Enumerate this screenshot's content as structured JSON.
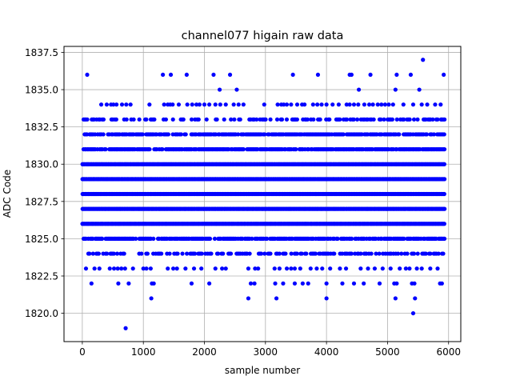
{
  "chart_data": {
    "type": "scatter",
    "title": "channel077 higain raw data",
    "xlabel": "sample number",
    "ylabel": "ADC Code",
    "xlim": [
      -300,
      6200
    ],
    "ylim": [
      1818.1,
      1837.9
    ],
    "x_ticks": [
      0,
      1000,
      2000,
      3000,
      4000,
      5000,
      6000
    ],
    "x_tick_labels": [
      "0",
      "1000",
      "2000",
      "3000",
      "4000",
      "5000",
      "6000"
    ],
    "y_ticks": [
      1820.0,
      1822.5,
      1825.0,
      1827.5,
      1830.0,
      1832.5,
      1835.0,
      1837.5
    ],
    "y_tick_labels": [
      "1820.0",
      "1822.5",
      "1825.0",
      "1827.5",
      "1830.0",
      "1832.5",
      "1835.0",
      "1837.5"
    ],
    "grid": true,
    "marker_color": "#0000ff",
    "series": [
      {
        "sample_range": [
          0,
          5940
        ],
        "dense_levels": [
          1824,
          1825,
          1826,
          1827,
          1828,
          1829,
          1830,
          1831,
          1832,
          1833
        ],
        "level_density": {
          "1824": 0.45,
          "1825": 0.8,
          "1826": 1.0,
          "1827": 1.0,
          "1828": 1.0,
          "1829": 1.0,
          "1830": 1.0,
          "1831": 0.9,
          "1832": 0.75,
          "1833": 0.35
        },
        "sparse_points": [
          [
            80,
            1836
          ],
          [
            310,
            1834
          ],
          [
            400,
            1834
          ],
          [
            470,
            1834
          ],
          [
            510,
            1834
          ],
          [
            560,
            1834
          ],
          [
            650,
            1834
          ],
          [
            720,
            1834
          ],
          [
            790,
            1834
          ],
          [
            1100,
            1834
          ],
          [
            1340,
            1834
          ],
          [
            1400,
            1834
          ],
          [
            1440,
            1834
          ],
          [
            1480,
            1834
          ],
          [
            1580,
            1834
          ],
          [
            1720,
            1834
          ],
          [
            1800,
            1834
          ],
          [
            1870,
            1834
          ],
          [
            1920,
            1834
          ],
          [
            2000,
            1834
          ],
          [
            2080,
            1834
          ],
          [
            2180,
            1834
          ],
          [
            2260,
            1834
          ],
          [
            2350,
            1834
          ],
          [
            2480,
            1834
          ],
          [
            2560,
            1834
          ],
          [
            2640,
            1834
          ],
          [
            2980,
            1834
          ],
          [
            3200,
            1834
          ],
          [
            3260,
            1834
          ],
          [
            3300,
            1834
          ],
          [
            3350,
            1834
          ],
          [
            3420,
            1834
          ],
          [
            3520,
            1834
          ],
          [
            3600,
            1834
          ],
          [
            3640,
            1834
          ],
          [
            3780,
            1834
          ],
          [
            3850,
            1834
          ],
          [
            3920,
            1834
          ],
          [
            4000,
            1834
          ],
          [
            4100,
            1834
          ],
          [
            4200,
            1834
          ],
          [
            4330,
            1834
          ],
          [
            4380,
            1834
          ],
          [
            4450,
            1834
          ],
          [
            4520,
            1834
          ],
          [
            4620,
            1834
          ],
          [
            4700,
            1834
          ],
          [
            4760,
            1834
          ],
          [
            4840,
            1834
          ],
          [
            4900,
            1834
          ],
          [
            4960,
            1834
          ],
          [
            5020,
            1834
          ],
          [
            5090,
            1834
          ],
          [
            5260,
            1834
          ],
          [
            5420,
            1834
          ],
          [
            5560,
            1834
          ],
          [
            5650,
            1834
          ],
          [
            5780,
            1834
          ],
          [
            5870,
            1834
          ],
          [
            1320,
            1836
          ],
          [
            1450,
            1836
          ],
          [
            1710,
            1836
          ],
          [
            2150,
            1836
          ],
          [
            2420,
            1836
          ],
          [
            3450,
            1836
          ],
          [
            3860,
            1836
          ],
          [
            4380,
            1836
          ],
          [
            4410,
            1836
          ],
          [
            4720,
            1836
          ],
          [
            5150,
            1836
          ],
          [
            5380,
            1836
          ],
          [
            5920,
            1836
          ],
          [
            2250,
            1835
          ],
          [
            2530,
            1835
          ],
          [
            4530,
            1835
          ],
          [
            5130,
            1835
          ],
          [
            5520,
            1835
          ],
          [
            5580,
            1837
          ],
          [
            150,
            1822
          ],
          [
            590,
            1822
          ],
          [
            760,
            1822
          ],
          [
            1140,
            1822
          ],
          [
            1170,
            1822
          ],
          [
            1790,
            1822
          ],
          [
            2080,
            1822
          ],
          [
            2760,
            1822
          ],
          [
            2820,
            1822
          ],
          [
            3160,
            1822
          ],
          [
            3290,
            1822
          ],
          [
            3480,
            1822
          ],
          [
            3610,
            1822
          ],
          [
            3700,
            1822
          ],
          [
            4000,
            1822
          ],
          [
            4260,
            1822
          ],
          [
            4450,
            1822
          ],
          [
            4610,
            1822
          ],
          [
            4870,
            1822
          ],
          [
            5110,
            1822
          ],
          [
            5150,
            1822
          ],
          [
            5400,
            1822
          ],
          [
            5440,
            1822
          ],
          [
            5860,
            1822
          ],
          [
            5890,
            1822
          ],
          [
            60,
            1823
          ],
          [
            200,
            1823
          ],
          [
            280,
            1823
          ],
          [
            450,
            1823
          ],
          [
            520,
            1823
          ],
          [
            580,
            1823
          ],
          [
            640,
            1823
          ],
          [
            700,
            1823
          ],
          [
            830,
            1823
          ],
          [
            1000,
            1823
          ],
          [
            1050,
            1823
          ],
          [
            1120,
            1823
          ],
          [
            1400,
            1823
          ],
          [
            1490,
            1823
          ],
          [
            1550,
            1823
          ],
          [
            1690,
            1823
          ],
          [
            1830,
            1823
          ],
          [
            1950,
            1823
          ],
          [
            2180,
            1823
          ],
          [
            2290,
            1823
          ],
          [
            2350,
            1823
          ],
          [
            2720,
            1823
          ],
          [
            2830,
            1823
          ],
          [
            2880,
            1823
          ],
          [
            3150,
            1823
          ],
          [
            3230,
            1823
          ],
          [
            3350,
            1823
          ],
          [
            3420,
            1823
          ],
          [
            3480,
            1823
          ],
          [
            3570,
            1823
          ],
          [
            3740,
            1823
          ],
          [
            3840,
            1823
          ],
          [
            3930,
            1823
          ],
          [
            4060,
            1823
          ],
          [
            4220,
            1823
          ],
          [
            4320,
            1823
          ],
          [
            4560,
            1823
          ],
          [
            4680,
            1823
          ],
          [
            4790,
            1823
          ],
          [
            4920,
            1823
          ],
          [
            5050,
            1823
          ],
          [
            5200,
            1823
          ],
          [
            5300,
            1823
          ],
          [
            5360,
            1823
          ],
          [
            5480,
            1823
          ],
          [
            5560,
            1823
          ],
          [
            5700,
            1823
          ],
          [
            5820,
            1823
          ],
          [
            1130,
            1821
          ],
          [
            2720,
            1821
          ],
          [
            3180,
            1821
          ],
          [
            4000,
            1821
          ],
          [
            5130,
            1821
          ],
          [
            5450,
            1821
          ],
          [
            710,
            1819
          ],
          [
            5420,
            1820
          ]
        ]
      }
    ]
  }
}
